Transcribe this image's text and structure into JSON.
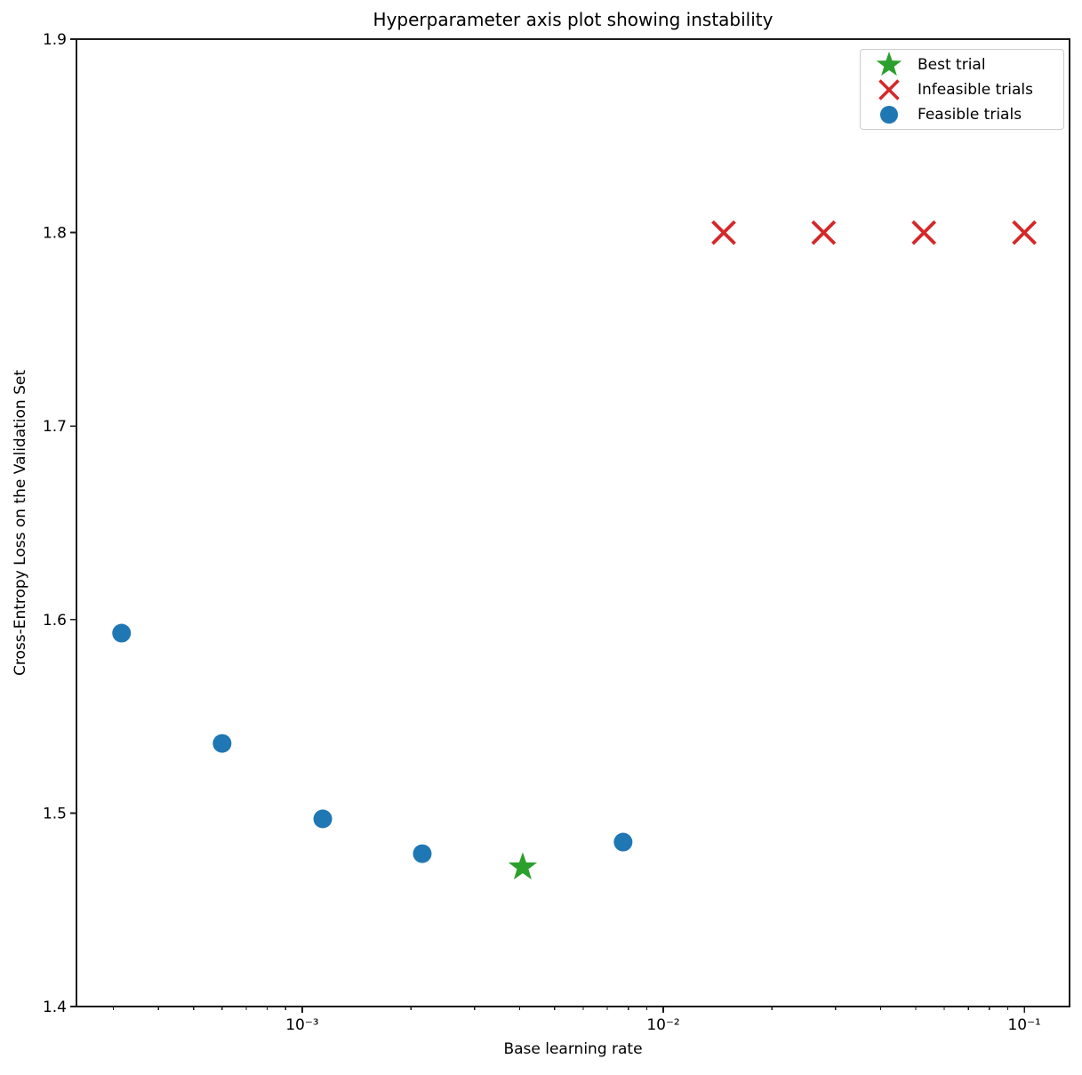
{
  "chart_data": {
    "type": "scatter",
    "title": "Hyperparameter axis plot showing instability",
    "xlabel": "Base learning rate",
    "ylabel": "Cross-Entropy Loss on the Validation Set",
    "x_scale": "log",
    "xlim": [
      0.000237,
      0.1334
    ],
    "ylim": [
      1.4,
      1.9
    ],
    "grid": false,
    "x_major_ticks": [
      {
        "value": 0.001,
        "label": "10⁻³"
      },
      {
        "value": 0.01,
        "label": "10⁻²"
      },
      {
        "value": 0.1,
        "label": "10⁻¹"
      }
    ],
    "y_ticks": [
      {
        "value": 1.4,
        "label": "1.4"
      },
      {
        "value": 1.5,
        "label": "1.5"
      },
      {
        "value": 1.6,
        "label": "1.6"
      },
      {
        "value": 1.7,
        "label": "1.7"
      },
      {
        "value": 1.8,
        "label": "1.8"
      },
      {
        "value": 1.9,
        "label": "1.9"
      }
    ],
    "legend_position": "upper right",
    "series": [
      {
        "name": "Best trial",
        "marker": "star",
        "color": "#2ca02c",
        "points": [
          {
            "x": 0.00408,
            "y": 1.472
          }
        ]
      },
      {
        "name": "Infeasible trials",
        "marker": "x",
        "color": "#d62728",
        "points": [
          {
            "x": 0.0147,
            "y": 1.8
          },
          {
            "x": 0.0278,
            "y": 1.8
          },
          {
            "x": 0.0527,
            "y": 1.8
          },
          {
            "x": 0.1,
            "y": 1.8
          }
        ]
      },
      {
        "name": "Feasible trials",
        "marker": "circle",
        "color": "#1f77b4",
        "points": [
          {
            "x": 0.000316,
            "y": 1.593
          },
          {
            "x": 0.0006,
            "y": 1.536
          },
          {
            "x": 0.00114,
            "y": 1.497
          },
          {
            "x": 0.00215,
            "y": 1.479
          },
          {
            "x": 0.00774,
            "y": 1.485
          }
        ]
      }
    ],
    "axis_color": "#1c1c1c"
  }
}
